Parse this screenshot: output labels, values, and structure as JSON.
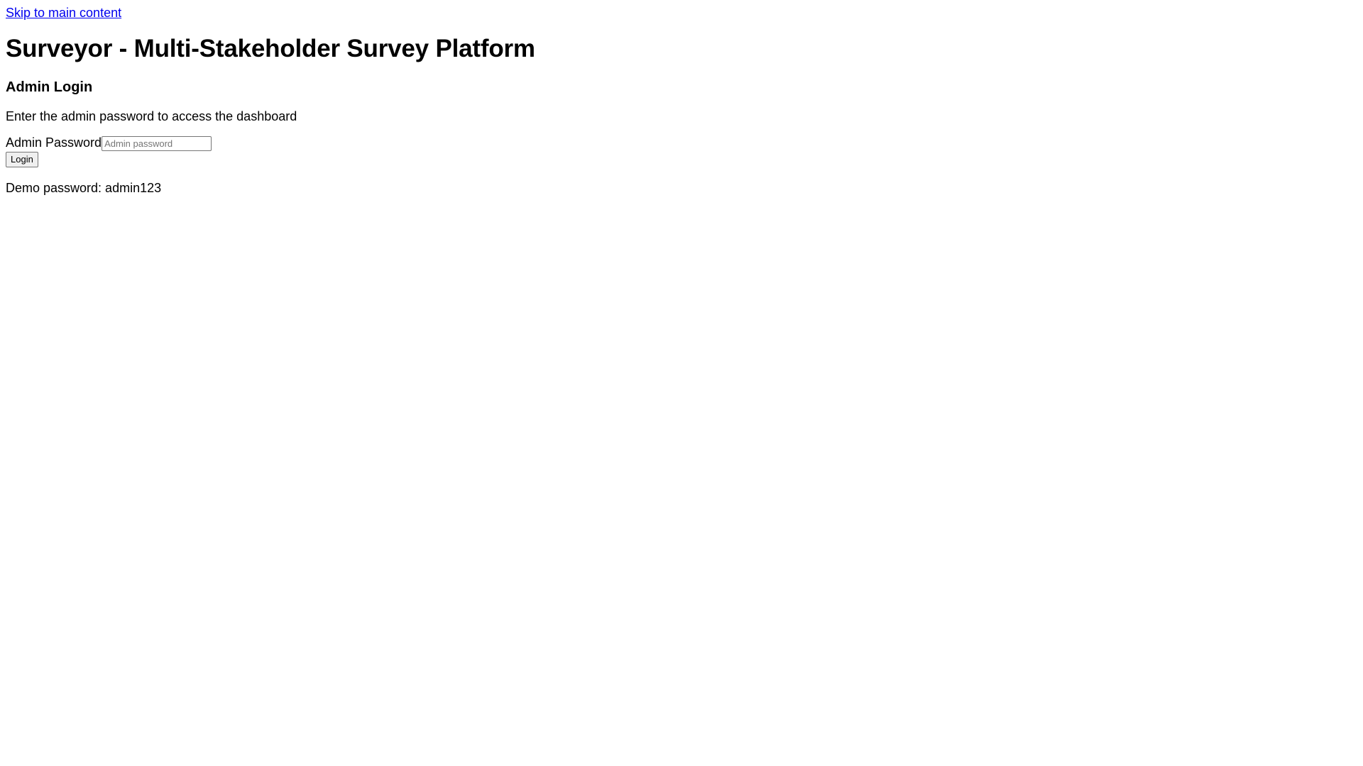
{
  "skip_link": {
    "label": "Skip to main content"
  },
  "header": {
    "title": "Surveyor - Multi-Stakeholder Survey Platform"
  },
  "login": {
    "heading": "Admin Login",
    "description": "Enter the admin password to access the dashboard",
    "password_label": "Admin Password",
    "password_placeholder": "Admin password",
    "password_value": "",
    "submit_label": "Login",
    "demo_note": "Demo password: admin123"
  },
  "colors": {
    "link": "#0000ee",
    "text": "#000000",
    "background": "#ffffff"
  }
}
